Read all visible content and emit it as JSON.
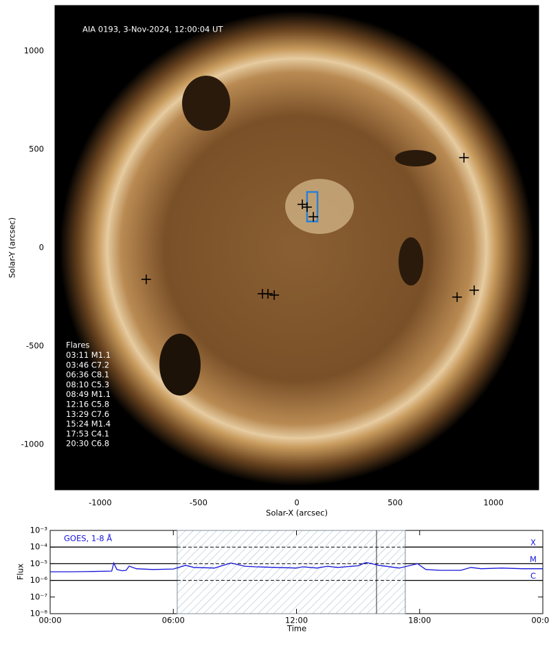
{
  "chart_data": [
    {
      "type": "scatter",
      "title": "AIA 0193, 3-Nov-2024, 12:00:04 UT",
      "x_label": "Solar-X (arcsec)",
      "y_label": "Solar-Y (arcsec)",
      "xlim": [
        -1230,
        1230
      ],
      "ylim": [
        -1230,
        1230
      ],
      "xticks": [
        -1000,
        -500,
        0,
        500,
        1000
      ],
      "yticks": [
        -1000,
        -500,
        0,
        500,
        1000
      ],
      "x": [
        28,
        52,
        84,
        -766,
        -175,
        -147,
        -115,
        850,
        815,
        902
      ],
      "values": [
        220,
        206,
        157,
        -161,
        -234,
        -234,
        -241,
        457,
        -251,
        -216
      ],
      "color": "#000000",
      "box": {
        "x": [
          52,
          105
        ],
        "y": [
          133,
          283
        ],
        "color": "#2a7fd4"
      },
      "annotation": {
        "title": "Flares",
        "items": [
          "03:11 M1.1",
          "03:46 C7.2",
          "06:36 C8.1",
          "08:10 C5.3",
          "08:49 M1.1",
          "12:16 C5.8",
          "13:29 C7.6",
          "15:24 M1.4",
          "17:53 C4.1",
          "20:30 C6.8"
        ]
      }
    },
    {
      "type": "line",
      "x_label": "Time",
      "y_label": "Flux",
      "log_y": true,
      "xlim": [
        0,
        24
      ],
      "ylim": [
        1e-08,
        0.001
      ],
      "xticks": [
        {
          "value": 0,
          "label": "00:00"
        },
        {
          "value": 6,
          "label": "06:00"
        },
        {
          "value": 12,
          "label": "12:00"
        },
        {
          "value": 18,
          "label": "18:00"
        },
        {
          "value": 24,
          "label": "00:00"
        }
      ],
      "yticks": [
        {
          "value": 1e-08,
          "label": "10⁻⁸"
        },
        {
          "value": 1e-07,
          "label": "10⁻⁷"
        },
        {
          "value": 1e-06,
          "label": "10⁻⁶"
        },
        {
          "value": 1e-05,
          "label": "10⁻⁵"
        },
        {
          "value": 0.0001,
          "label": "10⁻⁴"
        },
        {
          "value": 0.001,
          "label": "10⁻³"
        }
      ],
      "levels": [
        {
          "value": 0.0001,
          "label": "X"
        },
        {
          "value": 1e-05,
          "label": "M"
        },
        {
          "value": 1e-06,
          "label": "C"
        }
      ],
      "highlight": [
        6.19,
        17.3
      ],
      "marker_line": 15.9,
      "x": [
        0,
        1,
        2,
        3,
        3.1,
        3.25,
        3.5,
        3.7,
        3.85,
        4.2,
        5,
        6,
        6.6,
        7,
        8,
        8.2,
        8.8,
        9.5,
        10,
        11,
        12,
        12.3,
        13,
        13.5,
        14,
        15,
        15.4,
        16,
        17,
        17.9,
        18.3,
        19,
        20,
        20.5,
        21,
        22,
        23,
        24
      ],
      "series": [
        {
          "name": "GOES, 1-8 Å",
          "color": "#1414dc",
          "values": [
            3.3e-06,
            3.3e-06,
            3.4e-06,
            3.6e-06,
            1.1e-05,
            4.5e-06,
            3.8e-06,
            4e-06,
            7.2e-06,
            5e-06,
            4.5e-06,
            4.8e-06,
            8e-06,
            6e-06,
            5.5e-06,
            6.5e-06,
            1.1e-05,
            7e-06,
            6.5e-06,
            6e-06,
            5.5e-06,
            6.5e-06,
            5.5e-06,
            7e-06,
            6e-06,
            7.5e-06,
            1.2e-05,
            8e-06,
            5.5e-06,
            1e-05,
            4.5e-06,
            4e-06,
            4e-06,
            6e-06,
            5e-06,
            5.5e-06,
            5e-06,
            5e-06
          ]
        }
      ]
    }
  ]
}
